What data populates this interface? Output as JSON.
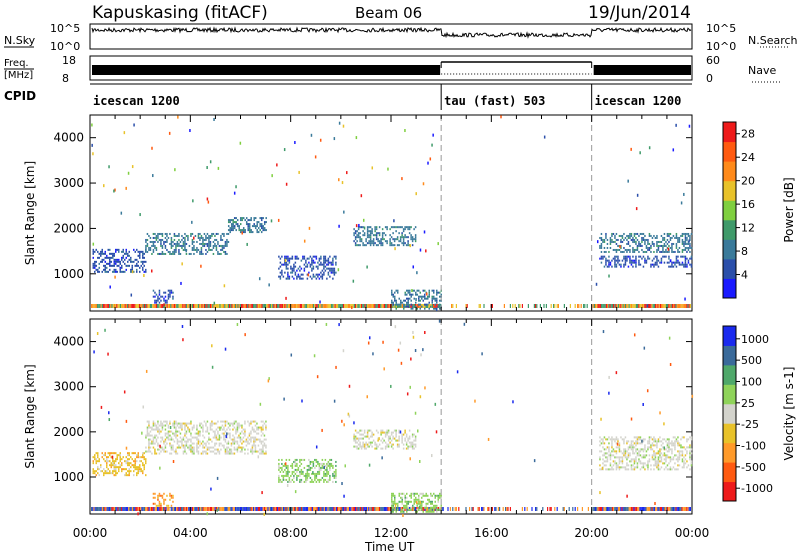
{
  "header": {
    "station": "Kapuskasing (fitACF)",
    "beam": "Beam 06",
    "date": "19/Jun/2014"
  },
  "strip": {
    "nsky_label": "N.Sky",
    "nsearch_label": "N.Search",
    "nsky_ticks": [
      "10^5",
      "10^0"
    ],
    "freq_label_line1": "Freq.",
    "freq_label_line2": "[MHz]",
    "freq_ticks": [
      "18",
      "8"
    ],
    "nave_label": "Nave",
    "nave_ticks": [
      "60",
      "0"
    ],
    "cpid_label": "CPID"
  },
  "cpid_segments": [
    {
      "label": "icescan 1200",
      "start_h": 0,
      "end_h": 14
    },
    {
      "label": "tau (fast) 503",
      "start_h": 14,
      "end_h": 20
    },
    {
      "label": "icescan 1200",
      "start_h": 20,
      "end_h": 24
    }
  ],
  "x_ticks": [
    "00:00",
    "04:00",
    "08:00",
    "12:00",
    "16:00",
    "20:00",
    "00:00"
  ],
  "x_title": "Time UT",
  "colors": {
    "power_scale": [
      "#1a1aff",
      "#2b4faa",
      "#3a7a9a",
      "#3f9a6a",
      "#7fcf3f",
      "#e8c22a",
      "#ff8a1a",
      "#ff5a10",
      "#ee1a1a"
    ],
    "velocity_scale": [
      "#ee1a1a",
      "#ff5a10",
      "#ff9a2a",
      "#e8c22a",
      "#d3d3cc",
      "#8fd35a",
      "#4fa86a",
      "#3a6a9a",
      "#1a2aee"
    ]
  },
  "chart_data": [
    {
      "type": "heatmap",
      "name": "power",
      "ylabel": "Slant Range [km]",
      "y_ticks": [
        "1000",
        "2000",
        "3000",
        "4000"
      ],
      "ylim": [
        180,
        4500
      ],
      "xlim_hours": [
        0,
        24
      ],
      "colorbar_label": "Power [dB]",
      "colorbar_ticks": [
        "4",
        "8",
        "12",
        "16",
        "20",
        "24",
        "28"
      ],
      "colorbar_range": [
        0,
        30
      ],
      "bands": [
        {
          "start_h": 0.1,
          "end_h": 2.2,
          "y_low": 1050,
          "y_high": 1550,
          "level": 1
        },
        {
          "start_h": 2.2,
          "end_h": 5.5,
          "y_low": 1450,
          "y_high": 1900,
          "level": 2
        },
        {
          "start_h": 5.5,
          "end_h": 7.0,
          "y_low": 1900,
          "y_high": 2250,
          "level": 2
        },
        {
          "start_h": 7.5,
          "end_h": 9.8,
          "y_low": 900,
          "y_high": 1400,
          "level": 1
        },
        {
          "start_h": 10.5,
          "end_h": 13.0,
          "y_low": 1650,
          "y_high": 2050,
          "level": 2
        },
        {
          "start_h": 2.5,
          "end_h": 3.3,
          "y_low": 350,
          "y_high": 650,
          "level": 1
        },
        {
          "start_h": 12.0,
          "end_h": 14.0,
          "y_low": 250,
          "y_high": 650,
          "level": 2
        },
        {
          "start_h": 20.3,
          "end_h": 24.0,
          "y_low": 1500,
          "y_high": 1900,
          "level": 2
        },
        {
          "start_h": 20.3,
          "end_h": 24.0,
          "y_low": 1150,
          "y_high": 1400,
          "level": 1
        }
      ]
    },
    {
      "type": "heatmap",
      "name": "velocity",
      "ylabel": "Slant Range [km]",
      "y_ticks": [
        "1000",
        "2000",
        "3000",
        "4000"
      ],
      "ylim": [
        180,
        4500
      ],
      "xlim_hours": [
        0,
        24
      ],
      "colorbar_label": "Velocity [m s-1]",
      "colorbar_ticks": [
        "-1000",
        "-500",
        "-100",
        "-25",
        "25",
        "100",
        "500",
        "1000"
      ],
      "bands": [
        {
          "start_h": 0.1,
          "end_h": 2.2,
          "y_low": 1050,
          "y_high": 1550,
          "level": 3
        },
        {
          "start_h": 2.2,
          "end_h": 7.0,
          "y_low": 1500,
          "y_high": 2250,
          "level": 4
        },
        {
          "start_h": 7.5,
          "end_h": 9.8,
          "y_low": 900,
          "y_high": 1400,
          "level": 5
        },
        {
          "start_h": 10.5,
          "end_h": 13.0,
          "y_low": 1650,
          "y_high": 2050,
          "level": 4
        },
        {
          "start_h": 2.5,
          "end_h": 3.3,
          "y_low": 350,
          "y_high": 650,
          "level": 2
        },
        {
          "start_h": 12.0,
          "end_h": 14.0,
          "y_low": 250,
          "y_high": 650,
          "level": 5
        },
        {
          "start_h": 20.3,
          "end_h": 24.0,
          "y_low": 1150,
          "y_high": 1900,
          "level": 4
        }
      ]
    }
  ]
}
